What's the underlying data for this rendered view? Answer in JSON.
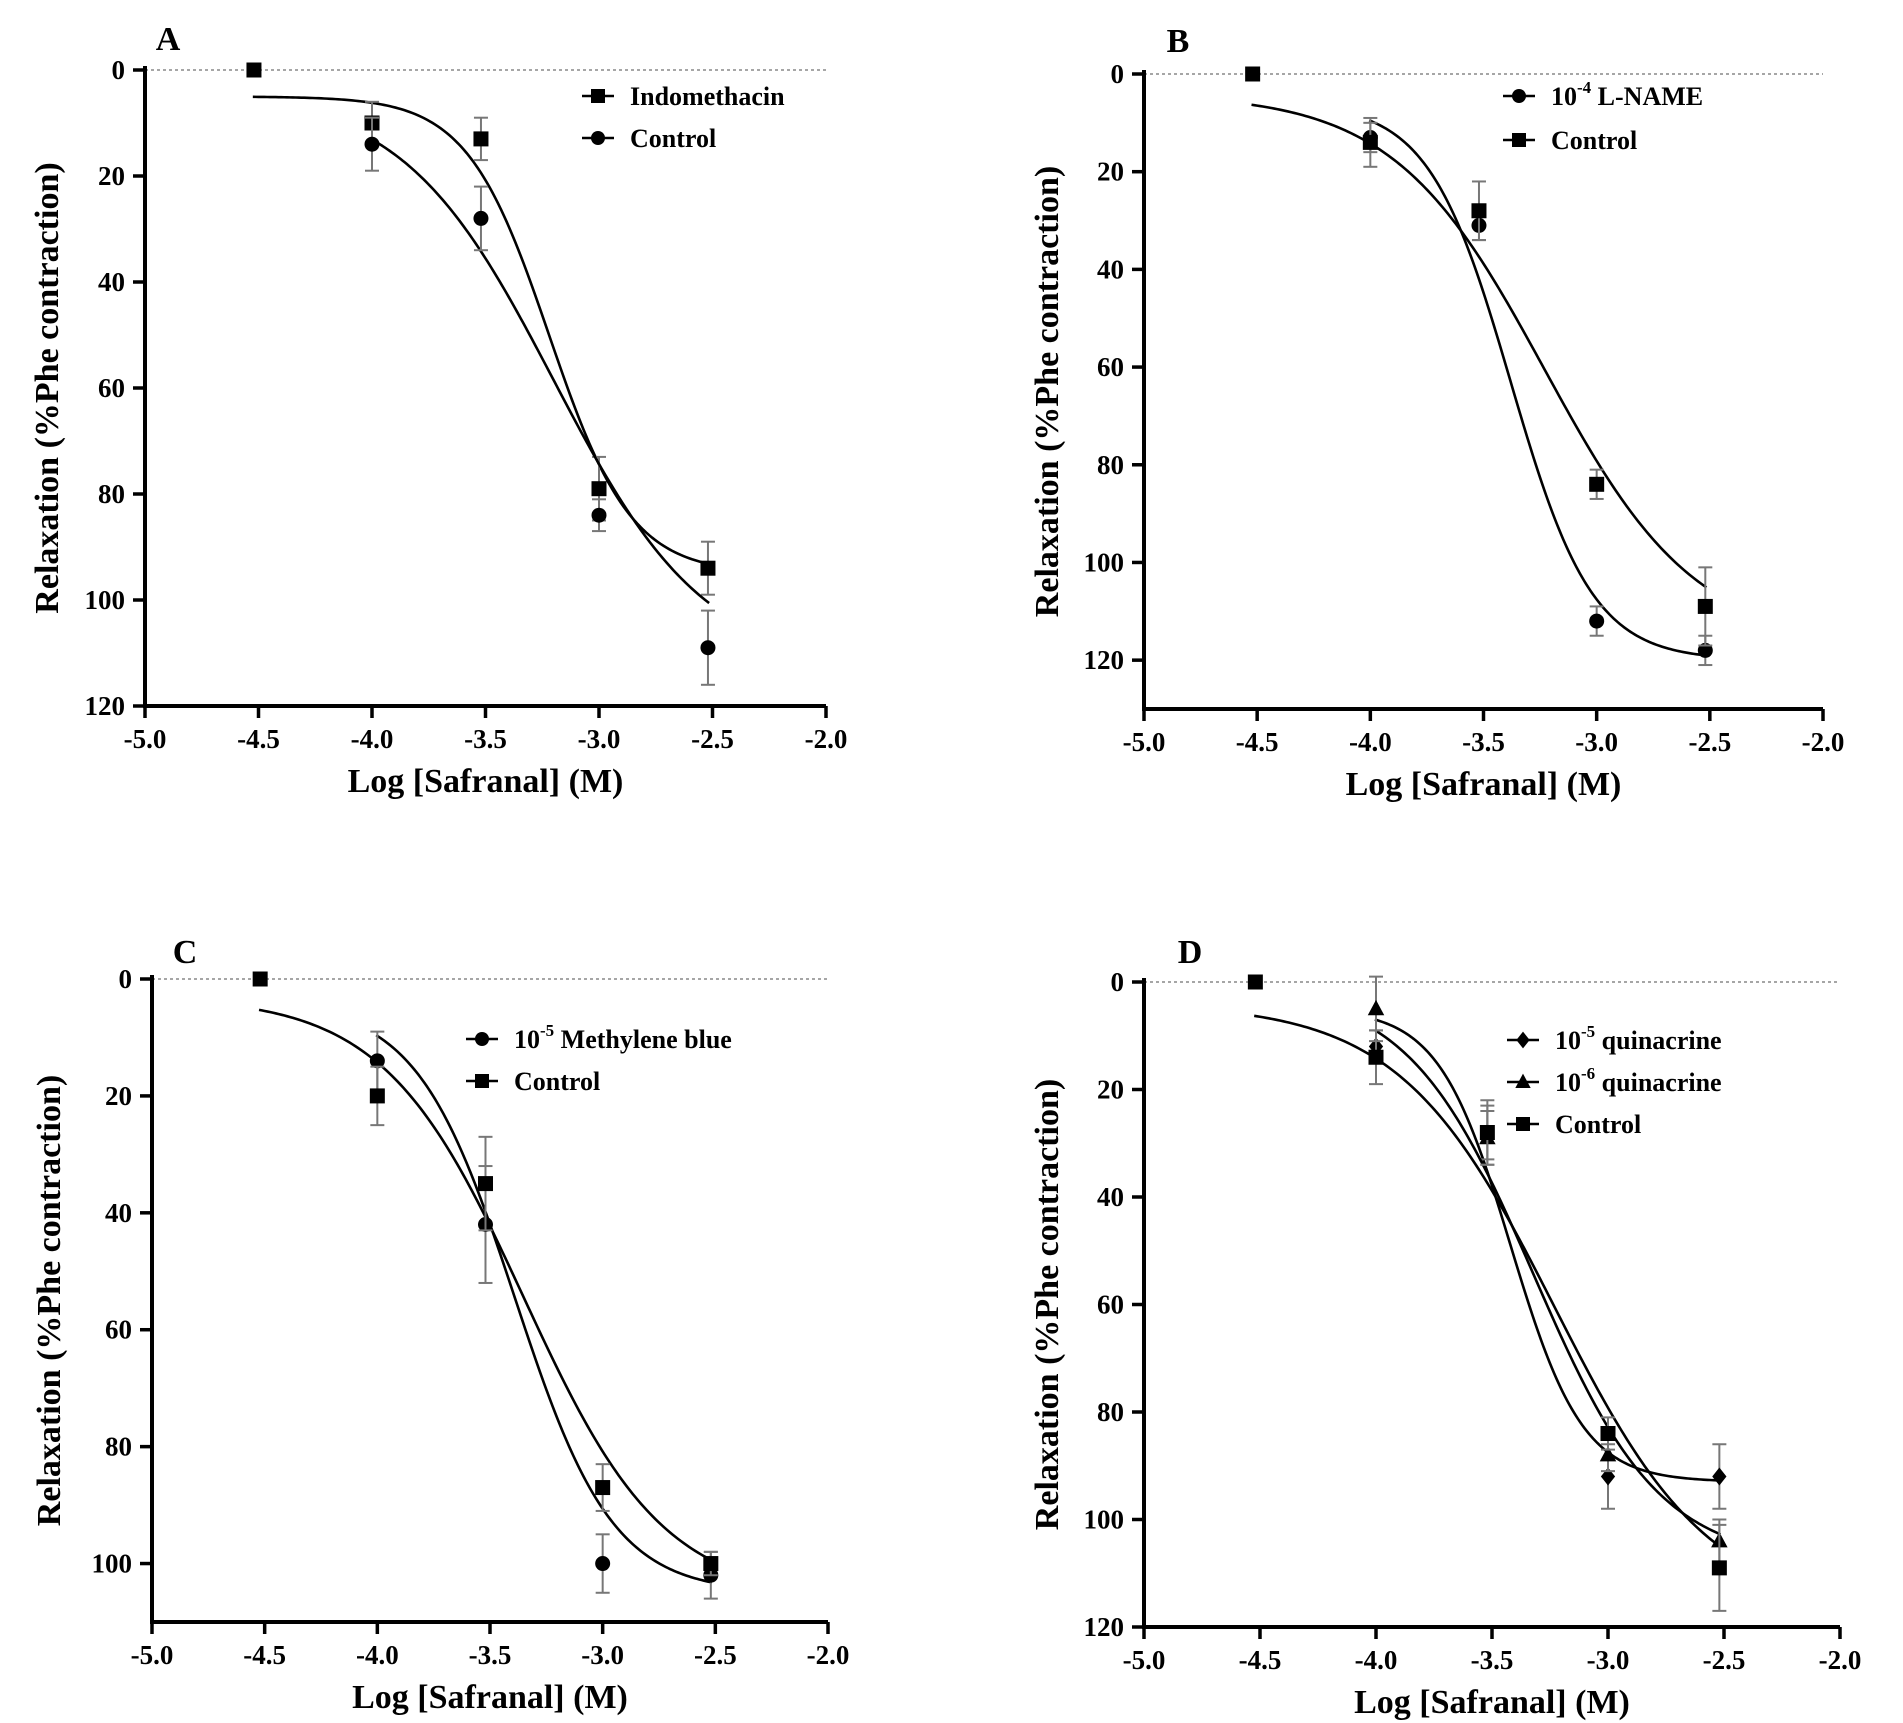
{
  "figure": {
    "background": "#ffffff",
    "ink": "#000000",
    "zero_line_color": "#888888"
  },
  "chart_data": [
    {
      "panel": "A",
      "type": "line",
      "xlabel": "Log [Safranal] (M)",
      "ylabel": "Relaxation (%Phe contraction)",
      "xlim": [
        -5.0,
        -2.0
      ],
      "ylim": [
        0,
        120
      ],
      "y_reversed": true,
      "xticks": [
        "-5.0",
        "-4.5",
        "-4.0",
        "-3.5",
        "-3.0",
        "-2.5",
        "-2.0"
      ],
      "yticks": [
        "0",
        "20",
        "40",
        "60",
        "80",
        "100",
        "120"
      ],
      "reference_line_at": 0,
      "legend_position": "top-right",
      "series": [
        {
          "name": "Indomethacin",
          "name_prefix": "",
          "name_sup": "",
          "marker": "square",
          "x": [
            -4.52,
            -4.0,
            -3.52,
            -3.0,
            -2.52
          ],
          "y": [
            0,
            10,
            13,
            79,
            94
          ],
          "err": [
            0,
            4,
            4,
            6,
            5
          ],
          "fit": {
            "bottom": 5,
            "top": 95,
            "logec50": -3.22,
            "hill": 2.4
          }
        },
        {
          "name": "Control",
          "name_prefix": "",
          "name_sup": "",
          "marker": "circle",
          "x": [
            -4.0,
            -3.52,
            -3.0,
            -2.52
          ],
          "y": [
            14,
            28,
            84,
            109
          ],
          "err": [
            5,
            6,
            3,
            7
          ],
          "fit": {
            "bottom": 4,
            "top": 113,
            "logec50": -3.2,
            "hill": 1.3
          }
        }
      ]
    },
    {
      "panel": "B",
      "type": "line",
      "xlabel": "Log [Safranal] (M)",
      "ylabel": "Relaxation (%Phe contraction)",
      "xlim": [
        -5.0,
        -2.0
      ],
      "ylim": [
        0,
        130
      ],
      "y_reversed": true,
      "xticks": [
        "-5.0",
        "-4.5",
        "-4.0",
        "-3.5",
        "-3.0",
        "-2.5",
        "-2.0"
      ],
      "yticks": [
        "0",
        "20",
        "40",
        "60",
        "80",
        "100",
        "120"
      ],
      "reference_line_at": 0,
      "legend_position": "top-right",
      "series": [
        {
          "name": "L-NAME",
          "name_prefix": "10",
          "name_sup": "-4",
          "marker": "circle",
          "x": [
            -4.0,
            -3.52,
            -3.0,
            -2.52
          ],
          "y": [
            13,
            31,
            112,
            118
          ],
          "err": [
            3,
            3,
            3,
            3
          ],
          "fit": {
            "bottom": 6,
            "top": 120,
            "logec50": -3.38,
            "hill": 2.4
          }
        },
        {
          "name": "Control",
          "name_prefix": "",
          "name_sup": "",
          "marker": "square",
          "x": [
            -4.52,
            -4.0,
            -3.52,
            -3.0,
            -2.52
          ],
          "y": [
            0,
            14,
            28,
            84,
            109
          ],
          "err": [
            0,
            5,
            6,
            3,
            8
          ],
          "fit": {
            "bottom": 4,
            "top": 117,
            "logec50": -3.23,
            "hill": 1.3
          }
        }
      ]
    },
    {
      "panel": "C",
      "type": "line",
      "xlabel": "Log [Safranal] (M)",
      "ylabel": "Relaxation (%Phe contraction)",
      "xlim": [
        -5.0,
        -2.0
      ],
      "ylim": [
        0,
        110
      ],
      "y_reversed": true,
      "xticks": [
        "-5.0",
        "-4.5",
        "-4.0",
        "-3.5",
        "-3.0",
        "-2.5",
        "-2.0"
      ],
      "yticks": [
        "0",
        "20",
        "40",
        "60",
        "80",
        "100"
      ],
      "reference_line_at": 0,
      "legend_position": "top-right",
      "series": [
        {
          "name": "Methylene blue",
          "name_prefix": "10",
          "name_sup": "-5",
          "marker": "circle",
          "x": [
            -4.0,
            -3.52,
            -3.0,
            -2.52
          ],
          "y": [
            14,
            42,
            100,
            102
          ],
          "err": [
            5,
            10,
            5,
            4
          ],
          "fit": {
            "bottom": 4,
            "top": 105,
            "logec50": -3.39,
            "hill": 2.0
          }
        },
        {
          "name": "Control",
          "name_prefix": "",
          "name_sup": "",
          "marker": "square",
          "x": [
            -4.52,
            -4.0,
            -3.52,
            -3.0,
            -2.52
          ],
          "y": [
            0,
            20,
            35,
            87,
            100
          ],
          "err": [
            0,
            5,
            8,
            4,
            2
          ],
          "fit": {
            "bottom": 3,
            "top": 106,
            "logec50": -3.35,
            "hill": 1.4
          }
        }
      ]
    },
    {
      "panel": "D",
      "type": "line",
      "xlabel": "Log [Safranal] (M)",
      "ylabel": "Relaxation (%Phe contraction)",
      "xlim": [
        -5.0,
        -2.0
      ],
      "ylim": [
        0,
        120
      ],
      "y_reversed": true,
      "xticks": [
        "-5.0",
        "-4.5",
        "-4.0",
        "-3.5",
        "-3.0",
        "-2.5",
        "-2.0"
      ],
      "yticks": [
        "0",
        "20",
        "40",
        "60",
        "80",
        "100",
        "120"
      ],
      "reference_line_at": 0,
      "legend_position": "top-right",
      "series": [
        {
          "name": "quinacrine",
          "name_prefix": "10",
          "name_sup": "-5",
          "marker": "diamond",
          "x": [
            -4.0,
            -3.52,
            -3.0,
            -2.52
          ],
          "y": [
            12,
            28,
            92,
            92
          ],
          "err": [
            3,
            5,
            6,
            6
          ],
          "fit": {
            "bottom": 5,
            "top": 93,
            "logec50": -3.42,
            "hill": 2.8
          }
        },
        {
          "name": "quinacrine",
          "name_prefix": "10",
          "name_sup": "-6",
          "marker": "triangle",
          "x": [
            -4.0,
            -3.52,
            -3.0,
            -2.52
          ],
          "y": [
            5,
            29,
            88,
            104
          ],
          "err": [
            6,
            5,
            3,
            4
          ],
          "fit": {
            "bottom": 1,
            "top": 108,
            "logec50": -3.32,
            "hill": 1.6
          }
        },
        {
          "name": "Control",
          "name_prefix": "",
          "name_sup": "",
          "marker": "square",
          "x": [
            -4.52,
            -4.0,
            -3.52,
            -3.0,
            -2.52
          ],
          "y": [
            0,
            14,
            28,
            84,
            109
          ],
          "err": [
            0,
            5,
            6,
            3,
            8
          ],
          "fit": {
            "bottom": 4,
            "top": 117,
            "logec50": -3.23,
            "hill": 1.3
          }
        }
      ]
    }
  ]
}
